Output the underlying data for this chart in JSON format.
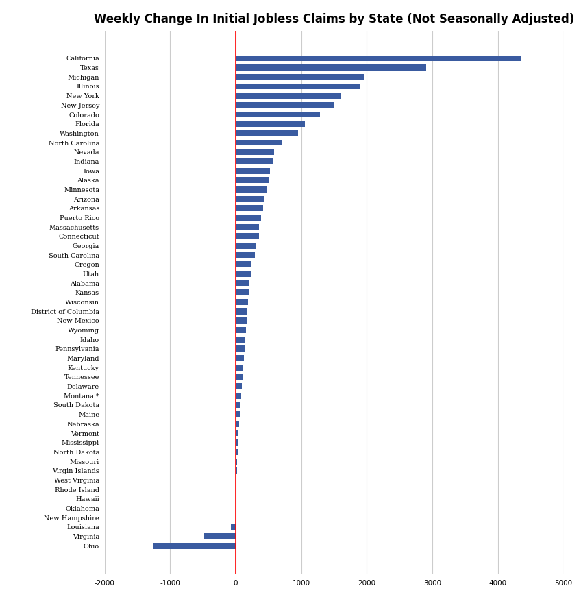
{
  "title": "Weekly Change In Initial Jobless Claims by State (Not Seasonally Adjusted)",
  "states": [
    "California",
    "Texas",
    "Michigan",
    "Illinois",
    "New York",
    "New Jersey",
    "Colorado",
    "Florida",
    "Washington",
    "North Carolina",
    "Nevada",
    "Indiana",
    "Iowa",
    "Alaska",
    "Minnesota",
    "Arizona",
    "Arkansas",
    "Puerto Rico",
    "Massachusetts",
    "Connecticut",
    "Georgia",
    "South Carolina",
    "Oregon",
    "Utah",
    "Alabama",
    "Kansas",
    "Wisconsin",
    "District of Columbia",
    "New Mexico",
    "Wyoming",
    "Idaho",
    "Pennsylvania",
    "Maryland",
    "Kentucky",
    "Tennessee",
    "Delaware",
    "Montana *",
    "South Dakota",
    "Maine",
    "Nebraska",
    "Vermont",
    "Mississippi",
    "North Dakota",
    "Missouri",
    "Virgin Islands",
    "West Virginia",
    "Rhode Island",
    "Hawaii",
    "Oklahoma",
    "New Hampshire",
    "Louisiana",
    "Virginia",
    "Ohio"
  ],
  "values": [
    4350,
    2900,
    1950,
    1900,
    1600,
    1500,
    1280,
    1050,
    950,
    700,
    580,
    560,
    520,
    500,
    470,
    440,
    420,
    390,
    360,
    350,
    300,
    290,
    240,
    230,
    210,
    200,
    190,
    180,
    170,
    155,
    145,
    135,
    125,
    115,
    105,
    95,
    85,
    75,
    65,
    55,
    45,
    35,
    28,
    22,
    18,
    14,
    11,
    9,
    7,
    4,
    -75,
    -480,
    -1250
  ],
  "bar_color": "#3A5BA0",
  "vline_color": "red",
  "xlim": [
    -2000,
    5000
  ],
  "xticks": [
    -2000,
    -1000,
    0,
    1000,
    2000,
    3000,
    4000,
    5000
  ],
  "background_color": "#ffffff",
  "title_fontsize": 12,
  "label_fontsize": 7,
  "tick_fontsize": 7.5
}
